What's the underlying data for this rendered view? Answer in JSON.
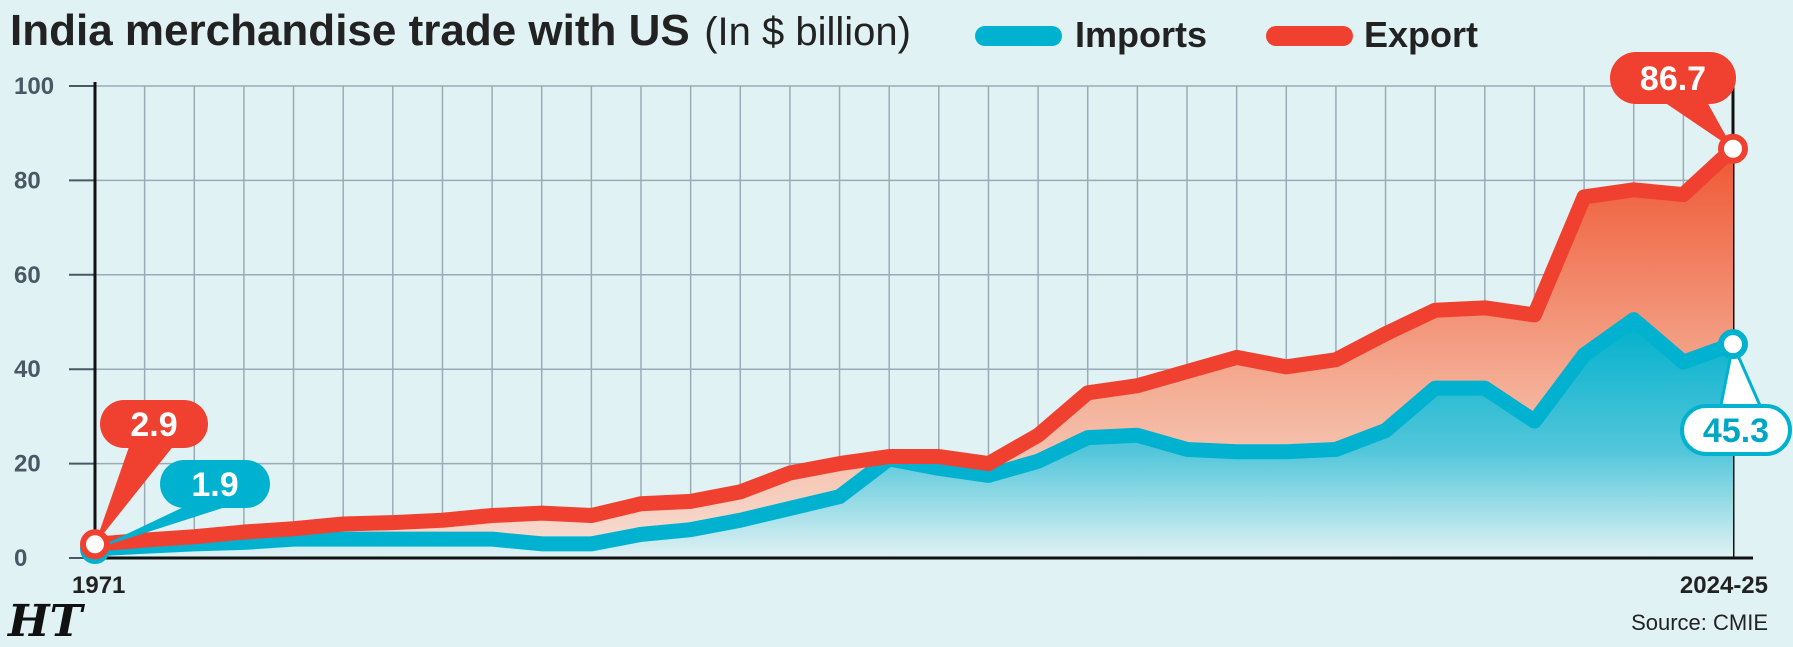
{
  "chart_data": {
    "type": "area",
    "title": "India merchandise trade with US",
    "subtitle": "(In $ billion)",
    "source": "Source: CMIE",
    "publisher": "HT",
    "ylim": [
      0,
      100
    ],
    "yticks": [
      "0",
      "20",
      "40",
      "60",
      "80",
      "100"
    ],
    "x_first": "1971",
    "x_last": "2024-25",
    "grid": true,
    "legend_position": "top",
    "series": [
      {
        "name": "Imports",
        "color": "#00b2d0",
        "values": [
          1.9,
          2.5,
          3,
          3.3,
          4,
          4,
          4,
          4,
          4,
          3,
          3,
          5,
          6,
          8,
          10.5,
          13,
          21,
          19,
          17.5,
          20.5,
          25.5,
          26,
          23,
          22.5,
          22.5,
          23,
          27,
          36,
          36,
          29,
          43,
          50.5,
          41.5,
          45.3
        ]
      },
      {
        "name": "Export",
        "color": "#f04130",
        "values": [
          2.9,
          3.8,
          4.5,
          5.5,
          6.2,
          7.2,
          7.5,
          8,
          9,
          9.5,
          9,
          11.5,
          12,
          14,
          18,
          20,
          21.5,
          21.5,
          20,
          26,
          35,
          36.5,
          39.5,
          42.5,
          40.5,
          42,
          47.5,
          52.5,
          53,
          51.5,
          76.5,
          78,
          77,
          86.7
        ]
      }
    ],
    "annotations": {
      "export_start": "2.9",
      "imports_start": "1.9",
      "export_end": "86.7",
      "imports_end": "45.3"
    }
  }
}
